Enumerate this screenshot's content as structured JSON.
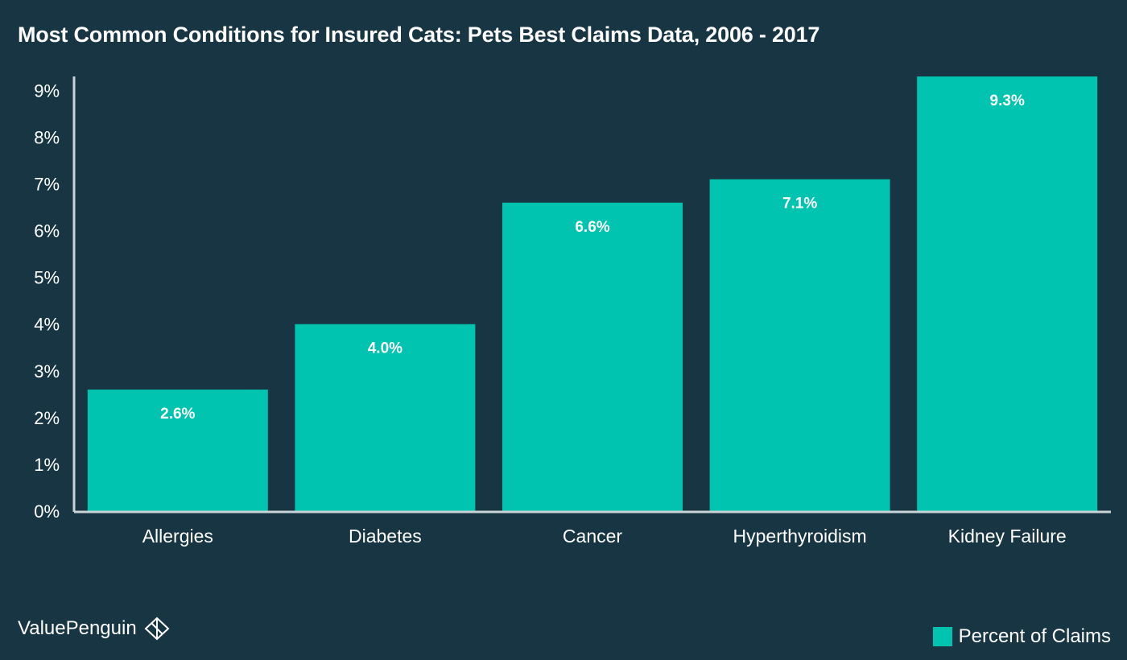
{
  "chart_data": {
    "type": "bar",
    "title": "Most Common Conditions for Insured Cats: Pets Best Claims Data, 2006 - 2017",
    "categories": [
      "Allergies",
      "Diabetes",
      "Cancer",
      "Hyperthyroidism",
      "Kidney Failure"
    ],
    "series": [
      {
        "name": "Percent of Claims",
        "values": [
          2.6,
          4.0,
          6.6,
          7.1,
          9.3
        ]
      }
    ],
    "data_labels": [
      "2.6%",
      "4.0%",
      "6.6%",
      "7.1%",
      "9.3%"
    ],
    "y_ticks": [
      "0%",
      "1%",
      "2%",
      "3%",
      "4%",
      "5%",
      "6%",
      "7%",
      "8%",
      "9%"
    ],
    "ylim": [
      0,
      9.3
    ],
    "grid": false,
    "legend_position": "bottom-right"
  },
  "colors": {
    "background": "#173542",
    "bar": "#00c4b0",
    "axis": "#c9d3d8",
    "text": "#ffffff"
  },
  "brand": {
    "name": "ValuePenguin",
    "icon": "penguin-logo-icon"
  },
  "legend": {
    "label": "Percent of Claims"
  }
}
